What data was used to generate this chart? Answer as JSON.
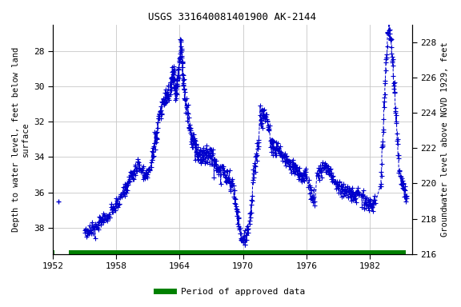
{
  "title": "USGS 331640081401900 AK-2144",
  "ylabel_left": "Depth to water level, feet below land\nsurface",
  "ylabel_right": "Groundwater level above NGVD 1929, feet",
  "xlim": [
    1952,
    1986
  ],
  "ylim_left": [
    39.5,
    26.5
  ],
  "ylim_right": [
    216,
    229
  ],
  "xticks": [
    1952,
    1958,
    1964,
    1970,
    1976,
    1982
  ],
  "yticks_left": [
    28,
    30,
    32,
    34,
    36,
    38
  ],
  "yticks_right": [
    216,
    218,
    220,
    222,
    224,
    226,
    228
  ],
  "line_color": "#0000cc",
  "green_color": "#008000",
  "bg_color": "#ffffff",
  "grid_color": "#c8c8c8",
  "font_family": "monospace"
}
